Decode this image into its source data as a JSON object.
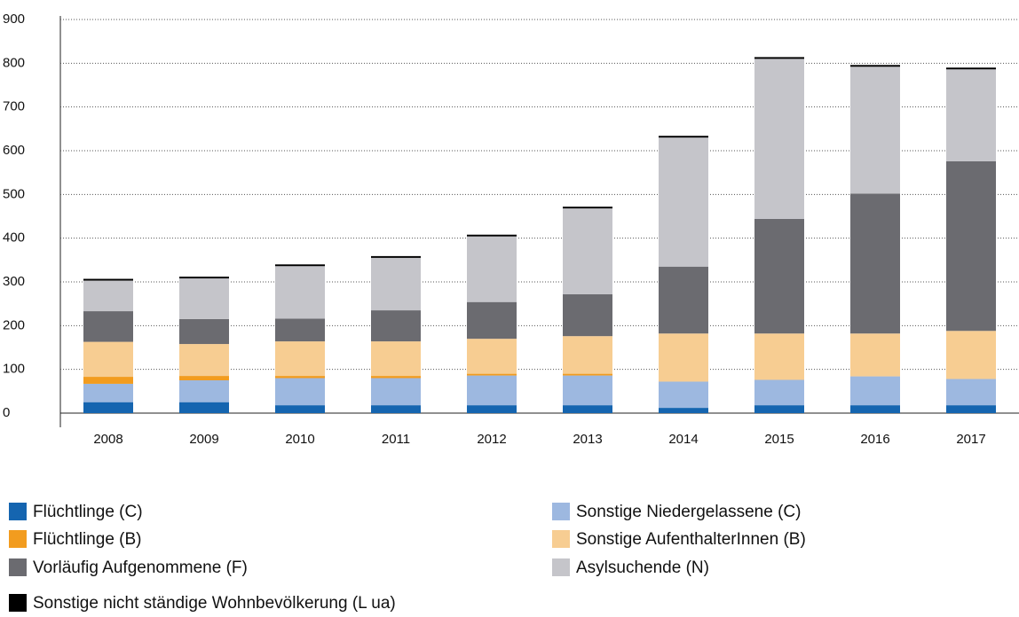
{
  "chart_data": {
    "type": "stacked_bar",
    "categories": [
      "2008",
      "2009",
      "2010",
      "2011",
      "2012",
      "2013",
      "2014",
      "2015",
      "2016",
      "2017"
    ],
    "series": [
      {
        "name": "Flüchtlinge (C)",
        "color": "#1565b0",
        "values": [
          25,
          25,
          18,
          18,
          18,
          18,
          12,
          18,
          18,
          18
        ]
      },
      {
        "name": "Sonstige Niedergelassene (C)",
        "color": "#9db8e0",
        "values": [
          42,
          50,
          62,
          62,
          68,
          68,
          60,
          58,
          66,
          60
        ]
      },
      {
        "name": "Flüchtlinge (B)",
        "color": "#f29c1f",
        "values": [
          16,
          10,
          5,
          5,
          4,
          4,
          0,
          0,
          0,
          0
        ]
      },
      {
        "name": "Sonstige AufenthalterInnen (B)",
        "color": "#f7cd92",
        "values": [
          80,
          73,
          79,
          79,
          80,
          86,
          110,
          106,
          98,
          110
        ]
      },
      {
        "name": "Vorläufig Aufgenommene (F)",
        "color": "#6b6b70",
        "values": [
          70,
          57,
          52,
          71,
          84,
          96,
          153,
          262,
          320,
          388
        ]
      },
      {
        "name": "Asylsuchende (N)",
        "color": "#c5c5ca",
        "values": [
          70,
          93,
          120,
          120,
          150,
          196,
          295,
          366,
          290,
          210
        ]
      },
      {
        "name": "Sonstige nicht ständige Wohnbevölkerung (L ua)",
        "color": "#000000",
        "values": [
          4,
          4,
          4,
          4,
          4,
          4,
          4,
          4,
          4,
          4
        ]
      }
    ],
    "ylim": [
      0,
      900
    ],
    "yticks": [
      0,
      100,
      200,
      300,
      400,
      500,
      600,
      700,
      800,
      900
    ],
    "grid": true
  }
}
